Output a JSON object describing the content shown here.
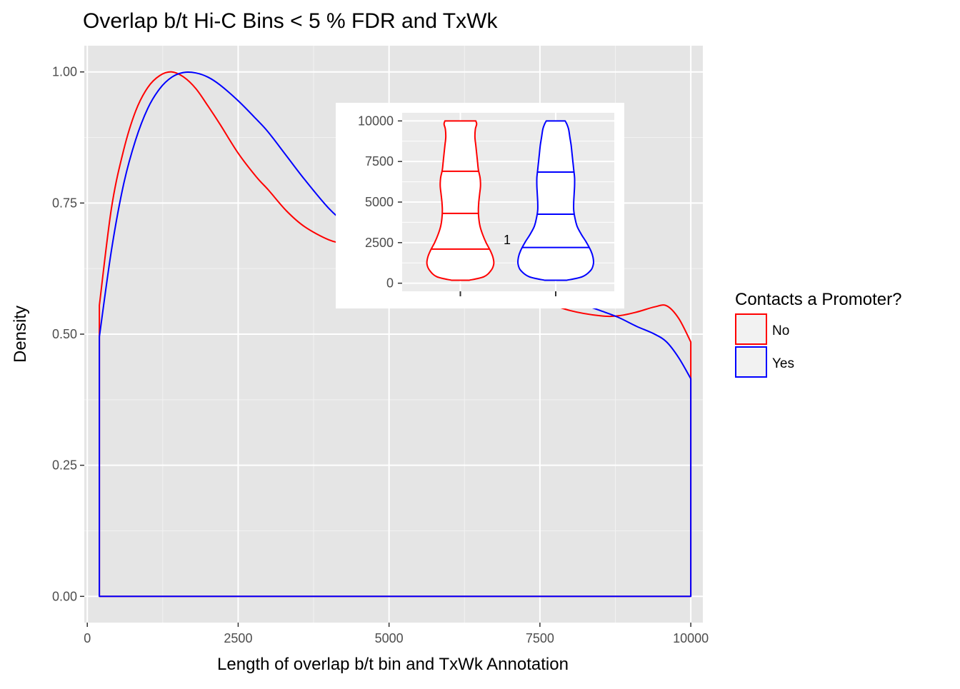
{
  "chart_data": [
    {
      "type": "density",
      "title": "Overlap b/t Hi-C Bins < 5 % FDR and TxWk",
      "xlabel": "Length of overlap b/t bin and TxWk Annotation",
      "ylabel": "Density",
      "xlim": [
        0,
        10000
      ],
      "ylim": [
        0,
        1.0
      ],
      "x_ticks": [
        0,
        2500,
        5000,
        7500,
        10000
      ],
      "y_ticks": [
        0.0,
        0.25,
        0.5,
        0.75,
        1.0
      ],
      "x_tick_labels": [
        "0",
        "2500",
        "5000",
        "7500",
        "10000"
      ],
      "y_tick_labels": [
        "0.00",
        "0.25",
        "0.50",
        "0.75",
        "1.00"
      ],
      "grid": true,
      "legend": {
        "title": "Contacts a Promoter?",
        "position": "right",
        "entries": [
          "No",
          "Yes"
        ]
      },
      "series": [
        {
          "name": "No",
          "color": "#ff0000",
          "x": [
            200,
            400,
            600,
            800,
            1000,
            1200,
            1400,
            1600,
            1800,
            2000,
            2200,
            2500,
            2800,
            3000,
            3300,
            3600,
            4000,
            4300,
            4600,
            5000,
            5500,
            6000,
            6500,
            7000,
            7500,
            8000,
            8500,
            8800,
            9100,
            9400,
            9600,
            9800,
            10000
          ],
          "y": [
            0.555,
            0.74,
            0.85,
            0.925,
            0.97,
            0.993,
            1.0,
            0.99,
            0.968,
            0.935,
            0.9,
            0.845,
            0.8,
            0.775,
            0.735,
            0.705,
            0.68,
            0.672,
            0.67,
            0.664,
            0.652,
            0.637,
            0.615,
            0.59,
            0.565,
            0.545,
            0.535,
            0.535,
            0.542,
            0.552,
            0.554,
            0.53,
            0.485
          ]
        },
        {
          "name": "Yes",
          "color": "#0000ff",
          "x": [
            200,
            400,
            600,
            800,
            1000,
            1200,
            1400,
            1600,
            1800,
            2000,
            2200,
            2500,
            2800,
            3000,
            3300,
            3600,
            4000,
            4300,
            4600,
            5000,
            5500,
            6000,
            6500,
            7000,
            7500,
            8000,
            8500,
            8800,
            9100,
            9400,
            9600,
            9800,
            10000
          ],
          "y": [
            0.495,
            0.66,
            0.785,
            0.87,
            0.93,
            0.968,
            0.99,
            0.999,
            0.998,
            0.99,
            0.975,
            0.945,
            0.91,
            0.885,
            0.84,
            0.795,
            0.74,
            0.71,
            0.692,
            0.675,
            0.662,
            0.649,
            0.632,
            0.608,
            0.585,
            0.565,
            0.545,
            0.532,
            0.515,
            0.5,
            0.485,
            0.455,
            0.415
          ]
        }
      ]
    },
    {
      "type": "violin",
      "inset": true,
      "annotation": "1",
      "ylim": [
        0,
        10000
      ],
      "y_ticks": [
        0,
        2500,
        5000,
        7500,
        10000
      ],
      "y_tick_labels": [
        "0",
        "2500",
        "5000",
        "7500",
        "10000"
      ],
      "series": [
        {
          "name": "No",
          "color": "#ff0000",
          "quantiles": [
            2100,
            4300,
            6900
          ],
          "profile_y": [
            180,
            400,
            800,
            1200,
            1600,
            2000,
            2500,
            3000,
            3500,
            4000,
            4500,
            5000,
            5500,
            6000,
            6500,
            7000,
            7500,
            8000,
            8500,
            9000,
            9500,
            9800,
            10000
          ],
          "halfwidth": [
            0.2,
            0.55,
            0.72,
            0.78,
            0.76,
            0.7,
            0.6,
            0.52,
            0.46,
            0.43,
            0.42,
            0.43,
            0.45,
            0.47,
            0.46,
            0.42,
            0.4,
            0.38,
            0.36,
            0.34,
            0.35,
            0.38,
            0.36
          ]
        },
        {
          "name": "Yes",
          "color": "#0000ff",
          "quantiles": [
            2200,
            4250,
            6850
          ],
          "profile_y": [
            180,
            400,
            800,
            1200,
            1600,
            2000,
            2500,
            3000,
            3500,
            4000,
            4500,
            5000,
            5500,
            6000,
            6500,
            7000,
            7500,
            8000,
            8500,
            9000,
            9500,
            9800,
            10000
          ],
          "halfwidth": [
            0.25,
            0.62,
            0.82,
            0.88,
            0.87,
            0.82,
            0.72,
            0.6,
            0.5,
            0.45,
            0.42,
            0.42,
            0.43,
            0.44,
            0.44,
            0.42,
            0.4,
            0.38,
            0.36,
            0.33,
            0.3,
            0.26,
            0.22
          ]
        }
      ]
    }
  ]
}
